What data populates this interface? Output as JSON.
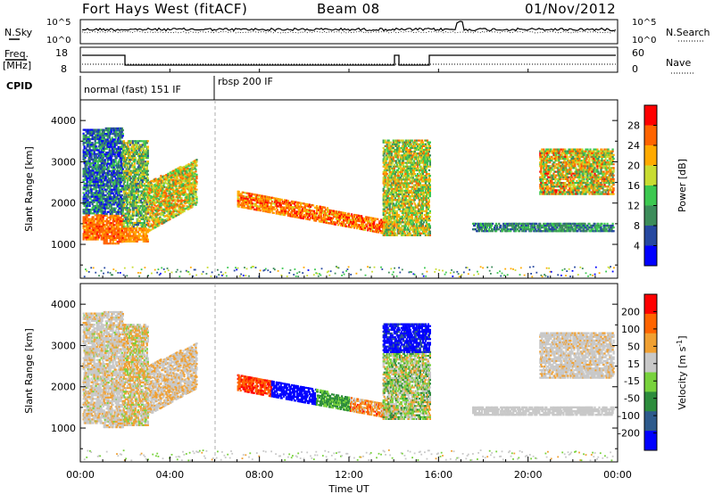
{
  "header": {
    "station": "Fort Hays West (fitACF)",
    "beam": "Beam 08",
    "date": "01/Nov/2012"
  },
  "noise_panel": {
    "left_label": "N.Sky",
    "right_label": "N.Search",
    "left_ticks": [
      "10^5",
      "10^0"
    ],
    "right_ticks": [
      "10^5",
      "10^0"
    ]
  },
  "freq_panel": {
    "left_label": "Freq.",
    "left_unit": "[MHz]",
    "right_label": "Nave",
    "left_ticks": [
      "18",
      "8"
    ],
    "right_ticks": [
      "60",
      "0"
    ]
  },
  "cpid_panel": {
    "label": "CPID",
    "modes": [
      {
        "name": "normal (fast) 151 IF",
        "start_hour": 0,
        "end_hour": 6
      },
      {
        "name": "rbsp 200 IF",
        "start_hour": 6,
        "end_hour": 24
      }
    ]
  },
  "colors": {
    "power_scale": [
      "#0000ff",
      "#2648a0",
      "#3c8c5a",
      "#3cc850",
      "#c8dc32",
      "#ffaa00",
      "#ff6400",
      "#ff0000"
    ],
    "velocity_scale": [
      "#0000ff",
      "#2d5a8c",
      "#2d8c3c",
      "#78d23c",
      "#c8c8c8",
      "#f0a032",
      "#ff6400",
      "#ff0000"
    ]
  },
  "chart_data": [
    {
      "type": "heatmap",
      "title": "Power",
      "ylabel": "Slant Range [km]",
      "ylim": [
        180,
        4500
      ],
      "yticks": [
        1000,
        2000,
        3000,
        4000
      ],
      "x_range_hours": [
        0,
        24
      ],
      "colorbar": {
        "label": "Power [dB]",
        "ticks": [
          "28",
          "24",
          "20",
          "16",
          "12",
          "8",
          "4"
        ],
        "range": [
          0,
          30
        ]
      }
    },
    {
      "type": "heatmap",
      "title": "Velocity",
      "xlabel": "Time UT",
      "xticks": [
        "00:00",
        "04:00",
        "08:00",
        "12:00",
        "16:00",
        "20:00",
        "00:00"
      ],
      "ylabel": "Slant Range [km]",
      "ylim": [
        180,
        4500
      ],
      "yticks": [
        1000,
        2000,
        3000,
        4000
      ],
      "x_range_hours": [
        0,
        24
      ],
      "colorbar": {
        "label": "Velocity [m s^-1]",
        "ticks": [
          "200",
          "100",
          "50",
          "15",
          "-15",
          "-50",
          "-100",
          "-200"
        ],
        "range": [
          -250,
          250
        ]
      }
    }
  ]
}
